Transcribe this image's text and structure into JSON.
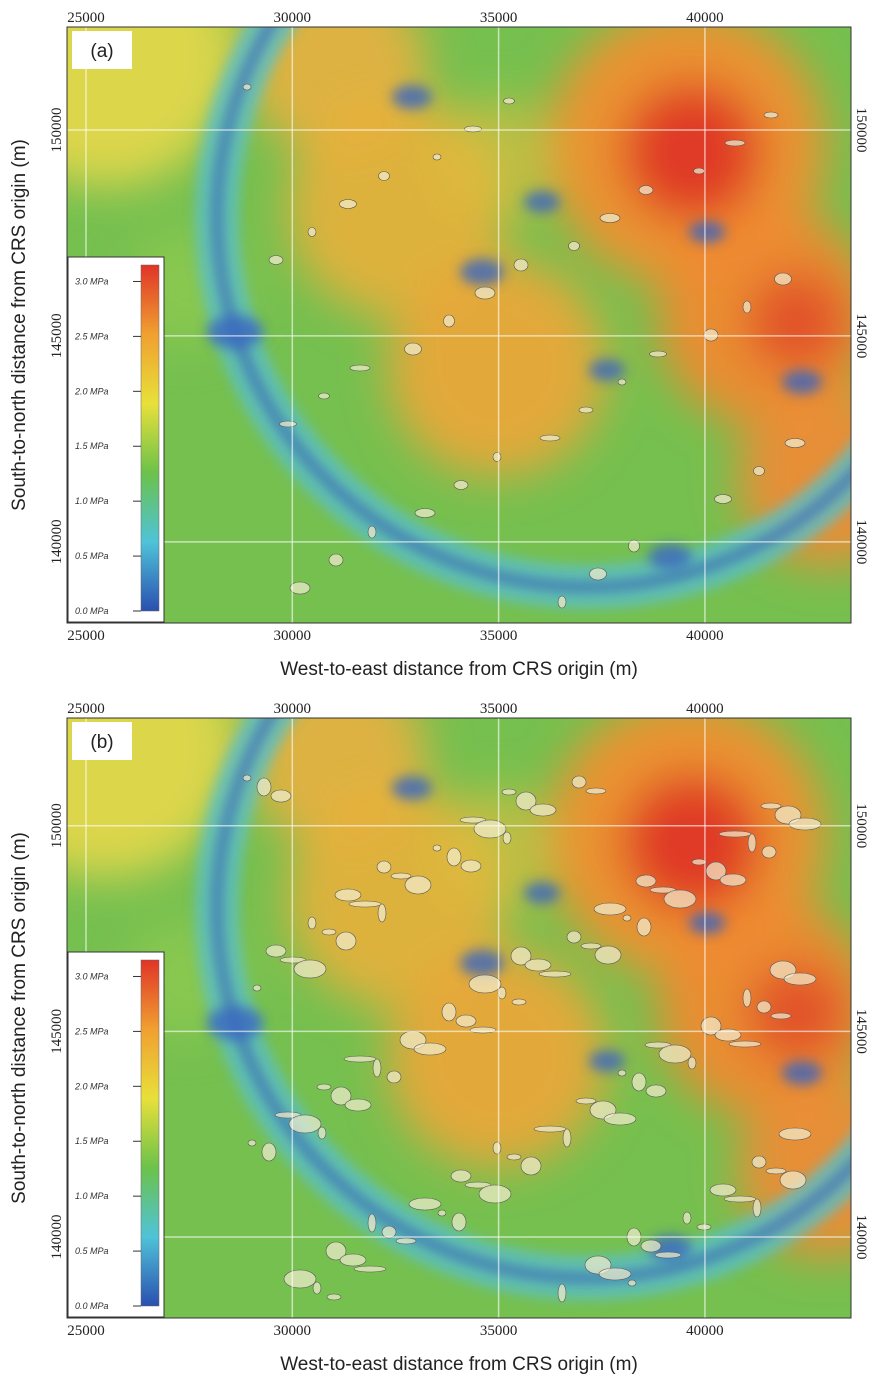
{
  "chart_data": [
    {
      "type": "map",
      "panel_label": "(a)",
      "x_label": "West-to-east distance from CRS origin (m)",
      "y_label": "South-to-north distance from CRS origin (m)",
      "xlim": [
        24540,
        43540
      ],
      "ylim": [
        138030,
        152500
      ],
      "xticks": [
        25000,
        30000,
        35000,
        40000
      ],
      "yticks": [
        140000,
        145000,
        150000
      ],
      "grid": true,
      "colorbar": {
        "lim": [
          0,
          3.15
        ],
        "ticks": [
          {
            "value": 0.0,
            "label": "0.0 MPa"
          },
          {
            "value": 0.5,
            "label": "0.5 MPa"
          },
          {
            "value": 1.0,
            "label": "1.0 MPa"
          },
          {
            "value": 1.5,
            "label": "1.5 MPa"
          },
          {
            "value": 2.0,
            "label": "2.0 MPa"
          },
          {
            "value": 2.5,
            "label": "2.5 MPa"
          },
          {
            "value": 3.0,
            "label": "3.0 MPa"
          }
        ],
        "colors": [
          "#2a4fb0",
          "#4fc3d8",
          "#6cc24a",
          "#e8e03a",
          "#f0a030",
          "#e03428"
        ]
      }
    },
    {
      "type": "map",
      "panel_label": "(b)",
      "x_label": "West-to-east distance from CRS origin (m)",
      "y_label": "South-to-north distance from CRS origin (m)",
      "xlim": [
        24540,
        43540
      ],
      "ylim": [
        138030,
        152620
      ],
      "xticks": [
        25000,
        30000,
        35000,
        40000
      ],
      "yticks": [
        140000,
        145000,
        150000
      ],
      "grid": true,
      "colorbar": {
        "lim": [
          0,
          3.15
        ],
        "ticks": [
          {
            "value": 0.0,
            "label": "0.0 MPa"
          },
          {
            "value": 0.5,
            "label": "0.5 MPa"
          },
          {
            "value": 1.0,
            "label": "1.0 MPa"
          },
          {
            "value": 1.5,
            "label": "1.5 MPa"
          },
          {
            "value": 2.0,
            "label": "2.0 MPa"
          },
          {
            "value": 2.5,
            "label": "2.5 MPa"
          },
          {
            "value": 3.0,
            "label": "3.0 MPa"
          }
        ],
        "colors": [
          "#2a4fb0",
          "#4fc3d8",
          "#6cc24a",
          "#e8e03a",
          "#f0a030",
          "#e03428"
        ]
      }
    }
  ]
}
